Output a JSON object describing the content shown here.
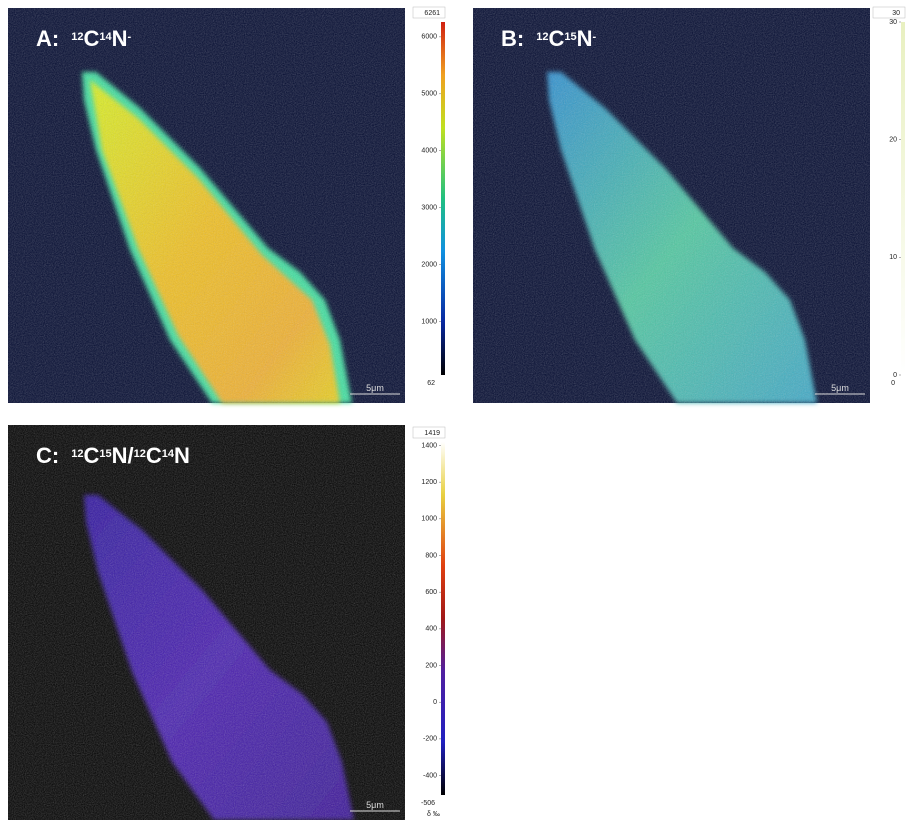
{
  "panels": [
    {
      "label": [
        {
          "text": "A:"
        },
        {
          "text": "12",
          "sup": true
        },
        {
          "text": "C"
        },
        {
          "text": "14",
          "sup": true
        },
        {
          "text": "N"
        },
        {
          "text": "-",
          "sup": true
        }
      ],
      "scale_bar": "5μm",
      "colorbar": {
        "max": 6261,
        "min": 62,
        "ticks": [
          1000,
          2000,
          3000,
          4000,
          5000,
          6000
        ]
      }
    },
    {
      "label": [
        {
          "text": "B:"
        },
        {
          "text": "12",
          "sup": true
        },
        {
          "text": "C"
        },
        {
          "text": "15",
          "sup": true
        },
        {
          "text": "N"
        },
        {
          "text": "-",
          "sup": true
        }
      ],
      "scale_bar": "5μm",
      "colorbar": {
        "max": 30,
        "min": 0,
        "ticks": [
          0,
          10,
          20,
          30
        ]
      }
    },
    {
      "label": [
        {
          "text": "C:"
        },
        {
          "text": "12",
          "sup": true
        },
        {
          "text": "C"
        },
        {
          "text": "15",
          "sup": true
        },
        {
          "text": "N/"
        },
        {
          "text": "12",
          "sup": true
        },
        {
          "text": "C"
        },
        {
          "text": "14",
          "sup": true
        },
        {
          "text": "N"
        }
      ],
      "scale_bar": "5μm",
      "colorbar": {
        "max": 1419,
        "min": -506,
        "ticks": [
          -400,
          -200,
          0,
          200,
          400,
          600,
          800,
          1000,
          1200,
          1400
        ],
        "unit": "δ ‰"
      }
    }
  ]
}
